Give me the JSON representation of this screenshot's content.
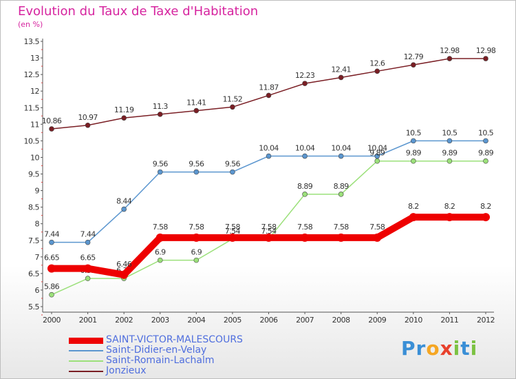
{
  "title": "Evolution du Taux de Taxe d'Habitation",
  "unit_label": "(en %)",
  "logo": {
    "text": [
      "P",
      "r",
      "o",
      "x",
      "i",
      "t",
      "i"
    ],
    "colors": [
      "#3a8fd6",
      "#3a8fd6",
      "#f5a623",
      "#e8412c",
      "#7cc242",
      "#3a8fd6",
      "#7cc242"
    ]
  },
  "chart_data": {
    "type": "line",
    "title": "Evolution du Taux de Taxe d'Habitation",
    "ylabel": "(en %)",
    "x": [
      "2000",
      "2001",
      "2002",
      "2003",
      "2004",
      "2005",
      "2006",
      "2007",
      "2008",
      "2009",
      "2010",
      "2011",
      "2012"
    ],
    "ylim": [
      5.5,
      13.5
    ],
    "yticks": [
      "5.5",
      "6",
      "6.5",
      "7",
      "7.5",
      "8",
      "8.5",
      "9",
      "9.5",
      "10",
      "10.5",
      "11",
      "11.5",
      "12",
      "12.5",
      "13",
      "13.5"
    ],
    "grid": false,
    "legend_position": "bottom-left",
    "series": [
      {
        "name": "Jonzieux",
        "color": "#7a1e24",
        "values": [
          10.86,
          10.97,
          11.19,
          11.3,
          11.41,
          11.52,
          11.87,
          12.23,
          12.41,
          12.6,
          12.79,
          12.98,
          12.98
        ],
        "labels": [
          "10.86",
          "10.97",
          "11.19",
          "11.3",
          "11.41",
          "11.52",
          "11.87",
          "12.23",
          "12.41",
          "12.6",
          "12.79",
          "12.98",
          "12.98"
        ]
      },
      {
        "name": "Saint-Didier-en-Velay",
        "color": "#5b96cf",
        "values": [
          7.44,
          7.44,
          8.44,
          9.56,
          9.56,
          9.56,
          10.04,
          10.04,
          10.04,
          10.04,
          10.5,
          10.5,
          10.5
        ],
        "labels": [
          "7.44",
          "7.44",
          "8.44",
          "9.56",
          "9.56",
          "9.56",
          "10.04",
          "10.04",
          "10.04",
          "10.04",
          "10.5",
          "10.5",
          "10.5"
        ]
      },
      {
        "name": "Saint-Romain-Lachalm",
        "color": "#9be07a",
        "values": [
          5.86,
          6.35,
          6.35,
          6.9,
          6.9,
          7.54,
          7.54,
          8.89,
          8.89,
          9.89,
          9.89,
          9.89,
          9.89
        ],
        "labels": [
          "5.86",
          "6.35",
          "6.35",
          "6.9",
          "6.9",
          "7.54",
          "7.54",
          "8.89",
          "8.89",
          "9.89",
          "9.89",
          "9.89",
          "9.89"
        ]
      },
      {
        "name": "SAINT-VICTOR-MALESCOURS",
        "color": "#ee0000",
        "values": [
          6.65,
          6.65,
          6.46,
          7.58,
          7.58,
          7.58,
          7.58,
          7.58,
          7.58,
          7.58,
          8.2,
          8.2,
          8.2
        ],
        "labels": [
          "6.65",
          "6.65",
          "6.46",
          "7.58",
          "7.58",
          "7.58",
          "7.58",
          "7.58",
          "7.58",
          "7.58",
          "8.2",
          "8.2",
          "8.2"
        ]
      }
    ],
    "legend_order": [
      "SAINT-VICTOR-MALESCOURS",
      "Saint-Didier-en-Velay",
      "Saint-Romain-Lachalm",
      "Jonzieux"
    ]
  }
}
